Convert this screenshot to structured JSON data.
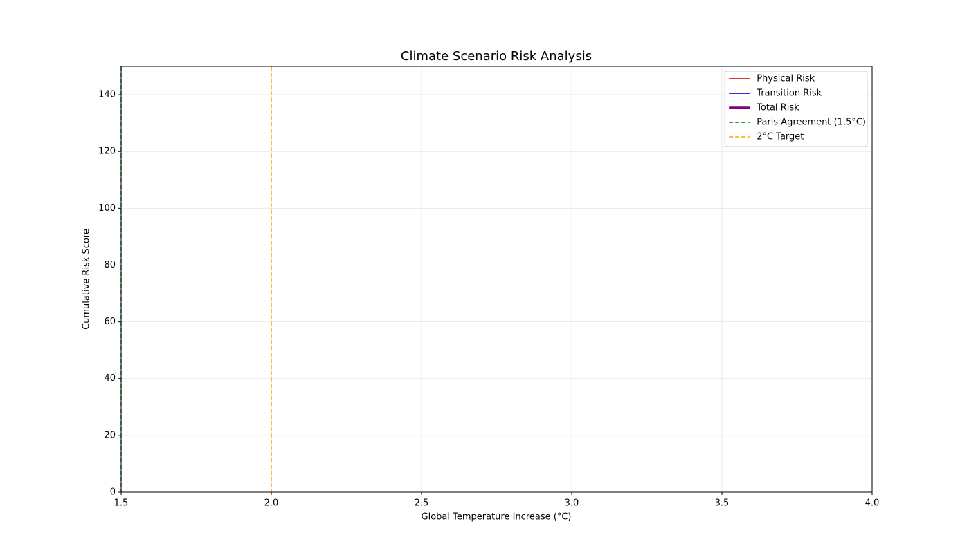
{
  "chart_data": {
    "type": "line",
    "title": "Climate Scenario Risk Analysis",
    "x_label": "Global Temperature Increase (°C)",
    "y_label": "Cumulative Risk Score",
    "xlim": [
      1.5,
      4.0
    ],
    "ylim": [
      0,
      150
    ],
    "xticks": [
      1.5,
      {
        "value": 2,
        "label": "2.0"
      },
      2.5,
      {
        "value": 3,
        "label": "3.0"
      },
      3.5,
      {
        "value": 4,
        "label": "4.0"
      }
    ],
    "yticks": [
      0,
      20,
      40,
      60,
      80,
      100,
      120,
      140
    ],
    "grid": true,
    "legend": "upper right",
    "series": [
      {
        "name": "Physical Risk",
        "color": "#e8322e",
        "linewidth": 2,
        "x": [],
        "values": []
      },
      {
        "name": "Transition Risk",
        "color": "#3333e0",
        "linewidth": 2,
        "x": [],
        "values": []
      },
      {
        "name": "Total Risk",
        "color": "purple",
        "linewidth": 3.5,
        "x": [],
        "values": []
      }
    ],
    "vlines": [
      {
        "name": "Paris Agreement (1.5°C)",
        "x": 1.5,
        "color": "green",
        "linestyle": "dashed"
      },
      {
        "name": "2°C Target",
        "x": 2,
        "color": "orange",
        "linestyle": "dashed"
      }
    ]
  }
}
